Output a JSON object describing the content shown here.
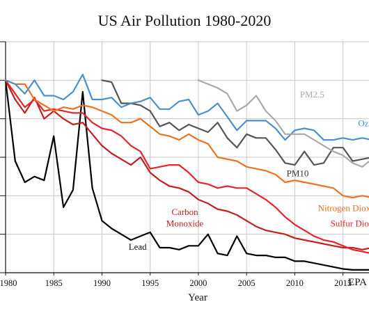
{
  "chart_data": {
    "type": "line",
    "title": "US Air Pollution 1980-2020",
    "xlabel": "Year",
    "ylabel": "",
    "xlim": [
      1980,
      2020
    ],
    "ylim": [
      0,
      1.2
    ],
    "grid": true,
    "y_ticks": [
      0,
      0.2,
      0.4,
      0.6,
      0.8,
      1.0,
      1.2
    ],
    "x_ticks": [
      {
        "value": 1980,
        "label": "1980"
      },
      {
        "value": 1985,
        "label": "1985"
      },
      {
        "value": 1990,
        "label": "1990"
      },
      {
        "value": 1995,
        "label": "1995"
      },
      {
        "value": 2000,
        "label": "2000"
      },
      {
        "value": 2005,
        "label": "2005"
      },
      {
        "value": 2010,
        "label": "2010"
      },
      {
        "value": 2015,
        "label": "2015"
      }
    ],
    "source_label": "EPA",
    "series": [
      {
        "name": "Lead",
        "color": "#000000",
        "label_lines": [
          "Lead"
        ],
        "label_pos": [
          1993.7,
          0.12
        ],
        "x": [
          1980,
          1981,
          1982,
          1983,
          1984,
          1985,
          1986,
          1987,
          1988,
          1989,
          1990,
          1991,
          1992,
          1993,
          1994,
          1995,
          1996,
          1997,
          1998,
          1999,
          2000,
          2001,
          2002,
          2003,
          2004,
          2005,
          2006,
          2007,
          2008,
          2009,
          2010,
          2011,
          2012,
          2013,
          2014,
          2015,
          2016,
          2017,
          2018,
          2019,
          2020
        ],
        "y": [
          1.0,
          0.58,
          0.47,
          0.5,
          0.48,
          0.71,
          0.34,
          0.43,
          0.94,
          0.44,
          0.27,
          0.23,
          0.2,
          0.17,
          0.19,
          0.21,
          0.13,
          0.13,
          0.12,
          0.14,
          0.14,
          0.2,
          0.1,
          0.09,
          0.19,
          0.1,
          0.09,
          0.09,
          0.08,
          0.08,
          0.06,
          0.06,
          0.05,
          0.04,
          0.03,
          0.02,
          0.015,
          0.015,
          0.015,
          0.015,
          0.015
        ]
      },
      {
        "name": "Carbon Monoxide",
        "color": "#c41e1e",
        "label_lines": [
          "Carbon",
          "Monoxide"
        ],
        "label_pos": [
          1998.6,
          0.3
        ],
        "x": [
          1980,
          1981,
          1982,
          1983,
          1984,
          1985,
          1986,
          1987,
          1988,
          1989,
          1990,
          1991,
          1992,
          1993,
          1994,
          1995,
          1996,
          1997,
          1998,
          1999,
          2000,
          2001,
          2002,
          2003,
          2004,
          2005,
          2006,
          2007,
          2008,
          2009,
          2010,
          2011,
          2012,
          2013,
          2014,
          2015,
          2016,
          2017,
          2018,
          2019,
          2020
        ],
        "y": [
          1.0,
          0.9,
          0.83,
          0.91,
          0.8,
          0.84,
          0.8,
          0.77,
          0.78,
          0.72,
          0.66,
          0.62,
          0.59,
          0.56,
          0.6,
          0.52,
          0.48,
          0.45,
          0.44,
          0.42,
          0.38,
          0.36,
          0.33,
          0.32,
          0.3,
          0.27,
          0.24,
          0.22,
          0.21,
          0.2,
          0.18,
          0.17,
          0.16,
          0.15,
          0.14,
          0.13,
          0.13,
          0.12,
          0.13,
          0.12,
          0.11
        ]
      },
      {
        "name": "Sulfur Dioxide",
        "color": "#e8242b",
        "label_lines": [
          "Sulfur Dioxide"
        ],
        "label_pos": [
          2016.5,
          0.24
        ],
        "x": [
          1980,
          1981,
          1982,
          1983,
          1984,
          1985,
          1986,
          1987,
          1988,
          1989,
          1990,
          1991,
          1992,
          1993,
          1994,
          1995,
          1996,
          1997,
          1998,
          1999,
          2000,
          2001,
          2002,
          2003,
          2004,
          2005,
          2006,
          2007,
          2008,
          2009,
          2010,
          2011,
          2012,
          2013,
          2014,
          2015,
          2016,
          2017,
          2018,
          2019,
          2020
        ],
        "y": [
          1.0,
          0.93,
          0.86,
          0.9,
          0.84,
          0.85,
          0.84,
          0.83,
          0.83,
          0.78,
          0.75,
          0.74,
          0.71,
          0.66,
          0.63,
          0.54,
          0.55,
          0.56,
          0.56,
          0.52,
          0.47,
          0.46,
          0.44,
          0.45,
          0.44,
          0.44,
          0.41,
          0.38,
          0.34,
          0.29,
          0.25,
          0.22,
          0.19,
          0.17,
          0.16,
          0.14,
          0.12,
          0.11,
          0.1,
          0.09,
          0.08
        ]
      },
      {
        "name": "Nitrogen Dioxide",
        "color": "#f07020",
        "label_lines": [
          "Nitrogen Dioxide"
        ],
        "label_pos": [
          2015.7,
          0.32
        ],
        "x": [
          1980,
          1981,
          1982,
          1983,
          1984,
          1985,
          1986,
          1987,
          1988,
          1989,
          1990,
          1991,
          1992,
          1993,
          1994,
          1995,
          1996,
          1997,
          1998,
          1999,
          2000,
          2001,
          2002,
          2003,
          2004,
          2005,
          2006,
          2007,
          2008,
          2009,
          2010,
          2011,
          2012,
          2013,
          2014,
          2015,
          2016,
          2017,
          2018,
          2019,
          2020
        ],
        "y": [
          1.0,
          0.98,
          0.98,
          0.9,
          0.87,
          0.84,
          0.86,
          0.85,
          0.87,
          0.86,
          0.84,
          0.82,
          0.78,
          0.78,
          0.8,
          0.76,
          0.72,
          0.71,
          0.69,
          0.72,
          0.69,
          0.67,
          0.6,
          0.59,
          0.58,
          0.55,
          0.54,
          0.53,
          0.51,
          0.47,
          0.48,
          0.47,
          0.46,
          0.45,
          0.44,
          0.4,
          0.39,
          0.4,
          0.39,
          0.39,
          0.37
        ]
      },
      {
        "name": "PM10",
        "color": "#555555",
        "label_lines": [
          "PM10"
        ],
        "label_pos": [
          2010.3,
          0.5
        ],
        "x": [
          1990,
          1991,
          1992,
          1993,
          1994,
          1995,
          1996,
          1997,
          1998,
          1999,
          2000,
          2001,
          2002,
          2003,
          2004,
          2005,
          2006,
          2007,
          2008,
          2009,
          2010,
          2011,
          2012,
          2013,
          2014,
          2015,
          2016,
          2017,
          2018,
          2019,
          2020
        ],
        "y": [
          1.0,
          0.99,
          0.88,
          0.88,
          0.87,
          0.84,
          0.76,
          0.78,
          0.74,
          0.77,
          0.75,
          0.73,
          0.78,
          0.7,
          0.65,
          0.72,
          0.7,
          0.7,
          0.64,
          0.57,
          0.56,
          0.63,
          0.56,
          0.57,
          0.65,
          0.65,
          0.58,
          0.59,
          0.6,
          0.62,
          0.71
        ]
      },
      {
        "name": "Ozone",
        "color": "#4a90d0",
        "label_lines": [
          "Ozone"
        ],
        "label_pos": [
          2017.8,
          0.76
        ],
        "x": [
          1980,
          1981,
          1982,
          1983,
          1984,
          1985,
          1986,
          1987,
          1988,
          1989,
          1990,
          1991,
          1992,
          1993,
          1994,
          1995,
          1996,
          1997,
          1998,
          1999,
          2000,
          2001,
          2002,
          2003,
          2004,
          2005,
          2006,
          2007,
          2008,
          2009,
          2010,
          2011,
          2012,
          2013,
          2014,
          2015,
          2016,
          2017,
          2018,
          2019,
          2020
        ],
        "y": [
          1.0,
          0.98,
          0.93,
          1.0,
          0.92,
          0.92,
          0.9,
          0.94,
          1.03,
          0.9,
          0.9,
          0.91,
          0.86,
          0.88,
          0.89,
          0.91,
          0.85,
          0.85,
          0.89,
          0.9,
          0.82,
          0.84,
          0.88,
          0.81,
          0.74,
          0.79,
          0.79,
          0.79,
          0.75,
          0.69,
          0.74,
          0.75,
          0.74,
          0.69,
          0.69,
          0.7,
          0.69,
          0.7,
          0.69,
          0.68,
          0.69
        ]
      },
      {
        "name": "PM2.5",
        "color": "#aaaaaa",
        "label_lines": [
          "PM2.5"
        ],
        "label_pos": [
          2011.8,
          0.91
        ],
        "x": [
          2000,
          2001,
          2002,
          2003,
          2004,
          2005,
          2006,
          2007,
          2008,
          2009,
          2010,
          2011,
          2012,
          2013,
          2014,
          2015,
          2016,
          2017,
          2018,
          2019,
          2020
        ],
        "y": [
          1.0,
          0.98,
          0.96,
          0.93,
          0.84,
          0.87,
          0.92,
          0.84,
          0.79,
          0.72,
          0.72,
          0.72,
          0.69,
          0.66,
          0.63,
          0.61,
          0.57,
          0.55,
          0.59,
          0.58,
          0.6
        ]
      }
    ]
  }
}
